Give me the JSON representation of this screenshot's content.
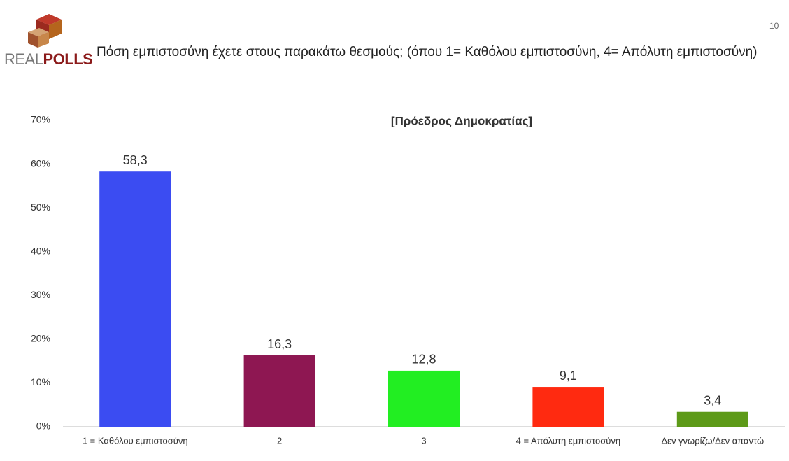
{
  "page_number": "10",
  "logo": {
    "part1": "REAL",
    "part2": "POLLS"
  },
  "header": {
    "title": "Πόση εμπιστοσύνη έχετε στους παρακάτω θεσμούς; (όπου 1= Καθόλου εμπιστοσύνη, 4= Απόλυτη εμπιστοσύνη)"
  },
  "chart_data": {
    "type": "bar",
    "title": "[Πρόεδρος Δημοκρατίας]",
    "categories": [
      "1 = Καθόλου εμπιστοσύνη",
      "2",
      "3",
      "4 = Απόλυτη εμπιστοσύνη",
      "Δεν γνωρίζω/Δεν απαντώ"
    ],
    "values": [
      58.3,
      16.3,
      12.8,
      9.1,
      3.4
    ],
    "value_labels": [
      "58,3",
      "16,3",
      "12,8",
      "9,1",
      "3,4"
    ],
    "colors": [
      "#3b4cf2",
      "#8e1752",
      "#22ee22",
      "#ff2a10",
      "#5d9a18"
    ],
    "ylim": [
      0,
      70
    ],
    "yticks": [
      {
        "value": 0,
        "label": "0%"
      },
      {
        "value": 10,
        "label": "10%"
      },
      {
        "value": 20,
        "label": "20%"
      },
      {
        "value": 30,
        "label": "30%"
      },
      {
        "value": 40,
        "label": "40%"
      },
      {
        "value": 50,
        "label": "50%"
      },
      {
        "value": 60,
        "label": "60%"
      },
      {
        "value": 70,
        "label": "70%"
      }
    ],
    "grid": false
  }
}
